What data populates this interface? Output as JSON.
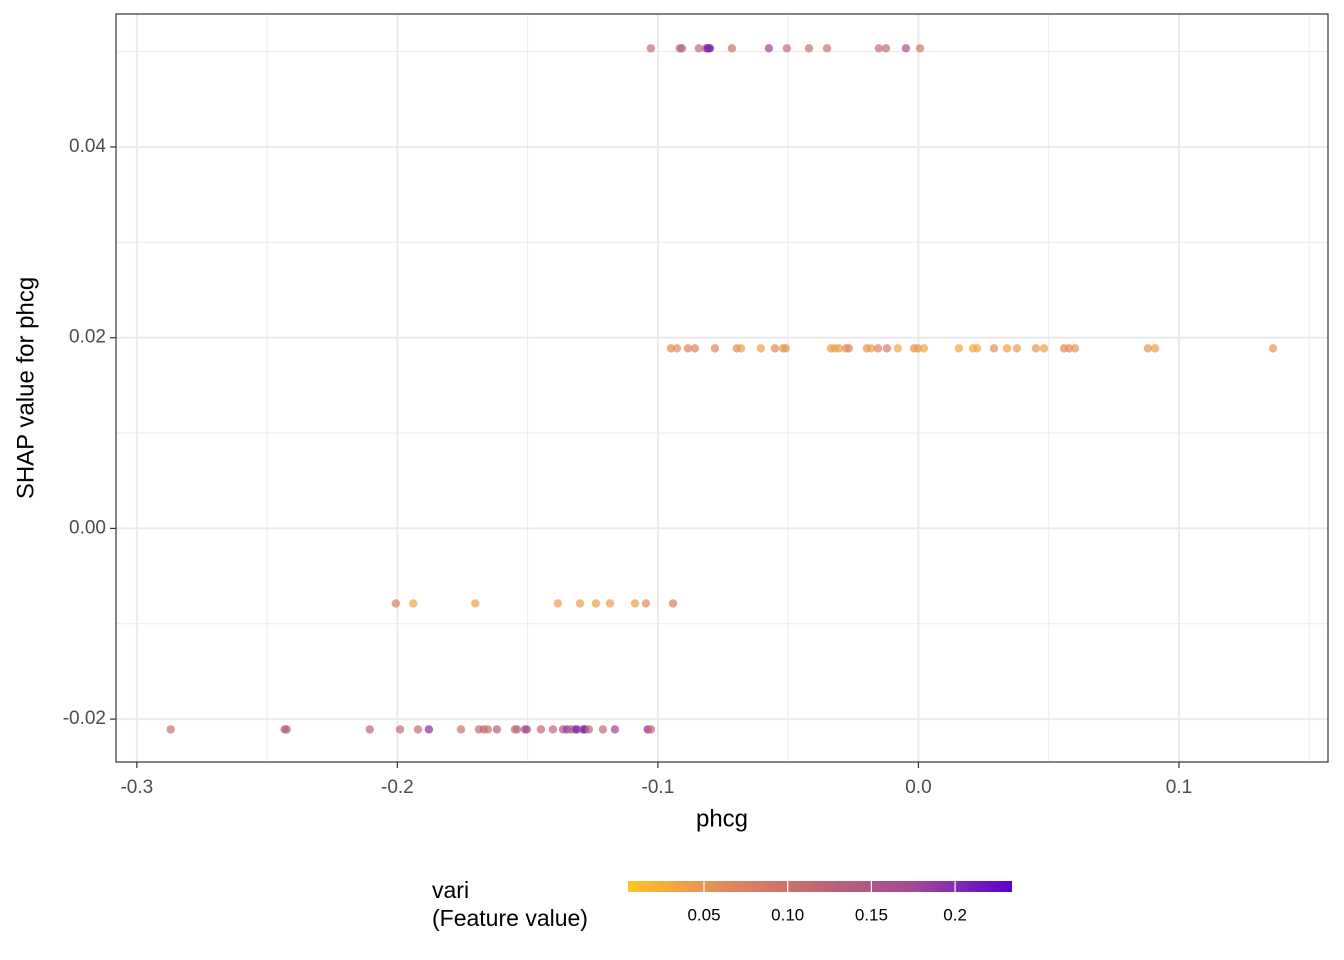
{
  "chart_data": {
    "type": "scatter",
    "x_label": "phcg",
    "y_label": "SHAP value for phcg",
    "xlim": [
      -0.308,
      0.1572
    ],
    "ylim": [
      -0.0245,
      0.05395
    ],
    "xticks": [
      -0.3,
      -0.2,
      -0.1,
      {
        "value": 0,
        "label": "0.0"
      },
      0.1
    ],
    "yticks": [
      -0.02,
      {
        "value": 0,
        "label": "0.00"
      },
      0.02,
      0.04
    ],
    "grid": true,
    "opacity": 0.7,
    "colorbar": {
      "title": [
        "vari",
        "(Feature value)"
      ],
      "lim": [
        0.0046,
        0.234
      ],
      "ticks": [
        0.05,
        {
          "value": 0.1,
          "label": "0.10"
        },
        0.15,
        0.2
      ],
      "colors": [
        "#ffc425",
        "#e08a5c",
        "#c06676",
        "#a14896",
        "#5a00d0"
      ]
    },
    "series": [
      {
        "x": [
          -0.1027,
          -0.0916,
          -0.0908,
          -0.0843,
          -0.0816,
          -0.0808,
          -0.0804,
          -0.08,
          -0.0716,
          -0.0574,
          -0.0505,
          -0.042,
          -0.0351,
          -0.0152,
          -0.0125,
          -0.0048,
          0.0006,
          -0.095,
          -0.0927,
          -0.0885,
          -0.0858,
          -0.0781,
          -0.0697,
          -0.0681,
          -0.0605,
          -0.0551,
          -0.052,
          -0.0509,
          -0.0336,
          -0.0321,
          -0.0305,
          -0.0278,
          -0.0267,
          -0.0198,
          -0.0182,
          -0.0155,
          -0.0121,
          -0.0079,
          -0.0017,
          -0.0002,
          0.0021,
          0.0155,
          0.0209,
          0.0225,
          0.029,
          0.034,
          0.0378,
          0.0451,
          0.0482,
          0.0559,
          0.0578,
          0.0601,
          0.0881,
          0.0908,
          0.1361,
          -0.2006,
          -0.1939,
          -0.1701,
          -0.1384,
          -0.1299,
          -0.1238,
          -0.1184,
          -0.1088,
          -0.1046,
          -0.0942,
          -0.287,
          -0.2433,
          -0.2425,
          -0.2106,
          -0.199,
          -0.1921,
          -0.1879,
          -0.1756,
          -0.1687,
          -0.1668,
          -0.1653,
          -0.1618,
          -0.1549,
          -0.1541,
          -0.151,
          -0.1503,
          -0.1449,
          -0.1403,
          -0.1364,
          -0.1349,
          -0.1334,
          -0.1318,
          -0.1311,
          -0.1288,
          -0.128,
          -0.1265,
          -0.1211,
          -0.1165,
          -0.1039,
          -0.1027
        ],
        "values": [
          0.05035,
          0.05035,
          0.05035,
          0.05035,
          0.05035,
          0.05035,
          0.05035,
          0.05035,
          0.05035,
          0.05035,
          0.05035,
          0.05035,
          0.05035,
          0.05035,
          0.05035,
          0.05035,
          0.05035,
          0.01888,
          0.01888,
          0.01888,
          0.01888,
          0.01888,
          0.01888,
          0.01888,
          0.01888,
          0.01888,
          0.01888,
          0.01888,
          0.01888,
          0.01888,
          0.01888,
          0.01888,
          0.01888,
          0.01888,
          0.01888,
          0.01888,
          0.01888,
          0.01888,
          0.01888,
          0.01888,
          0.01888,
          0.01888,
          0.01888,
          0.01888,
          0.01888,
          0.01888,
          0.01888,
          0.01888,
          0.01888,
          0.01888,
          0.01888,
          0.01888,
          0.01888,
          0.01888,
          0.01888,
          -0.00787,
          -0.00787,
          -0.00787,
          -0.00787,
          -0.00787,
          -0.00787,
          -0.00787,
          -0.00787,
          -0.00787,
          -0.00787,
          -0.02108,
          -0.02108,
          -0.02108,
          -0.02108,
          -0.02108,
          -0.02108,
          -0.02108,
          -0.02108,
          -0.02108,
          -0.02108,
          -0.02108,
          -0.02108,
          -0.02108,
          -0.02108,
          -0.02108,
          -0.02108,
          -0.02108,
          -0.02108,
          -0.02108,
          -0.02108,
          -0.02108,
          -0.02108,
          -0.02108,
          -0.02108,
          -0.02108,
          -0.02108,
          -0.02108,
          -0.02108,
          -0.02108,
          -0.02108
        ],
        "vari": [
          0.11,
          0.13,
          0.13,
          0.11,
          0.15,
          0.22,
          0.2,
          0.2,
          0.1,
          0.18,
          0.11,
          0.1,
          0.1,
          0.11,
          0.11,
          0.16,
          0.09,
          0.06,
          0.06,
          0.07,
          0.07,
          0.07,
          0.06,
          0.04,
          0.04,
          0.06,
          0.05,
          0.05,
          0.04,
          0.04,
          0.04,
          0.06,
          0.06,
          0.05,
          0.04,
          0.07,
          0.08,
          0.03,
          0.05,
          0.05,
          0.03,
          0.03,
          0.03,
          0.03,
          0.06,
          0.04,
          0.04,
          0.05,
          0.04,
          0.06,
          0.06,
          0.05,
          0.05,
          0.04,
          0.05,
          0.08,
          0.03,
          0.04,
          0.04,
          0.04,
          0.04,
          0.04,
          0.04,
          0.06,
          0.08,
          0.1,
          0.14,
          0.14,
          0.12,
          0.11,
          0.11,
          0.2,
          0.1,
          0.11,
          0.12,
          0.1,
          0.13,
          0.11,
          0.12,
          0.17,
          0.17,
          0.12,
          0.12,
          0.15,
          0.19,
          0.14,
          0.15,
          0.21,
          0.17,
          0.22,
          0.12,
          0.12,
          0.18,
          0.2,
          0.12
        ]
      }
    ]
  }
}
